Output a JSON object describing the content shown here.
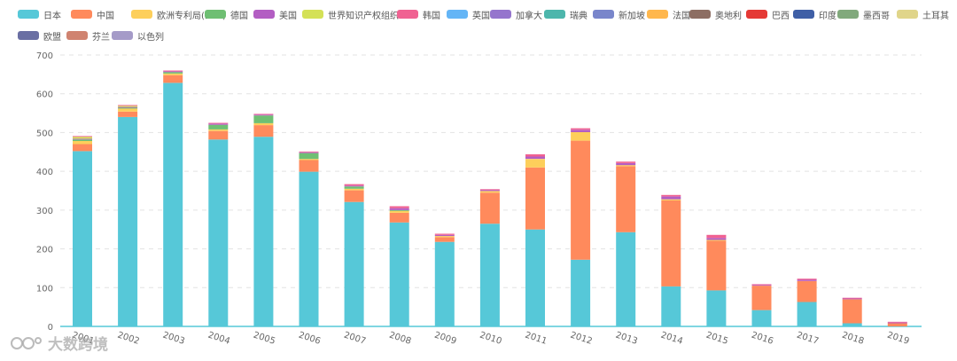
{
  "chart_data": {
    "type": "bar",
    "stacked": true,
    "categories": [
      "2001",
      "2002",
      "2003",
      "2004",
      "2005",
      "2006",
      "2007",
      "2008",
      "2009",
      "2010",
      "2011",
      "2012",
      "2013",
      "2014",
      "2015",
      "2016",
      "2017",
      "2018",
      "2019"
    ],
    "ylim": [
      0,
      700
    ],
    "yticks": [
      0,
      100,
      200,
      300,
      400,
      500,
      600,
      700
    ],
    "legend_position": "top",
    "grid": "horizontal dashed",
    "series": [
      {
        "name": "日本",
        "color": "#56c8d8",
        "values": [
          452,
          540,
          628,
          482,
          489,
          399,
          321,
          268,
          218,
          265,
          250,
          172,
          243,
          103,
          93,
          42,
          63,
          8,
          0
        ]
      },
      {
        "name": "中国",
        "color": "#ff8a5c",
        "values": [
          18,
          14,
          20,
          22,
          30,
          30,
          30,
          25,
          12,
          80,
          160,
          307,
          170,
          222,
          128,
          63,
          54,
          62,
          8
        ]
      },
      {
        "name": "欧洲专利局(EPO)",
        "color": "#fdcf5b",
        "values": [
          8,
          8,
          4,
          4,
          5,
          3,
          4,
          5,
          3,
          4,
          22,
          22,
          3,
          3,
          2,
          0,
          0,
          0,
          0
        ]
      },
      {
        "name": "德国",
        "color": "#6fbf73",
        "values": [
          4,
          2,
          4,
          12,
          20,
          15,
          6,
          2,
          0,
          0,
          0,
          0,
          0,
          0,
          0,
          0,
          0,
          0,
          0
        ]
      },
      {
        "name": "美国",
        "color": "#b35ec3",
        "values": [
          2,
          2,
          2,
          3,
          2,
          2,
          2,
          5,
          3,
          3,
          6,
          6,
          5,
          7,
          5,
          2,
          3,
          2,
          2
        ]
      },
      {
        "name": "世界知识产权组织",
        "color": "#d4e157",
        "values": [
          5,
          3,
          0,
          0,
          0,
          0,
          0,
          0,
          0,
          0,
          0,
          0,
          0,
          0,
          0,
          0,
          0,
          0,
          0
        ]
      },
      {
        "name": "韩国",
        "color": "#f06292",
        "values": [
          2,
          2,
          2,
          2,
          2,
          2,
          4,
          5,
          3,
          2,
          6,
          4,
          4,
          4,
          8,
          2,
          3,
          2,
          2
        ]
      },
      {
        "name": "英国",
        "color": "#64b5f6",
        "values": [
          0,
          0,
          0,
          0,
          0,
          0,
          0,
          0,
          0,
          0,
          0,
          0,
          0,
          0,
          0,
          0,
          0,
          0,
          0
        ]
      },
      {
        "name": "加拿大",
        "color": "#9575cd",
        "values": [
          0,
          0,
          0,
          0,
          0,
          0,
          0,
          0,
          0,
          0,
          0,
          0,
          0,
          0,
          0,
          0,
          0,
          0,
          0
        ]
      },
      {
        "name": "瑞典",
        "color": "#4db6ac",
        "values": [
          0,
          0,
          0,
          0,
          0,
          0,
          0,
          0,
          0,
          0,
          0,
          0,
          0,
          0,
          0,
          0,
          0,
          0,
          0
        ]
      },
      {
        "name": "新加坡",
        "color": "#7986cb",
        "values": [
          0,
          0,
          0,
          0,
          0,
          0,
          0,
          0,
          0,
          0,
          0,
          0,
          0,
          0,
          0,
          0,
          0,
          0,
          0
        ]
      },
      {
        "name": "法国",
        "color": "#ffb74d",
        "values": [
          0,
          0,
          0,
          0,
          0,
          0,
          0,
          0,
          0,
          0,
          0,
          0,
          0,
          0,
          0,
          0,
          0,
          0,
          0
        ]
      },
      {
        "name": "奥地利",
        "color": "#8d6e63",
        "values": [
          0,
          0,
          0,
          0,
          0,
          0,
          0,
          0,
          0,
          0,
          0,
          0,
          0,
          0,
          0,
          0,
          0,
          0,
          0
        ]
      },
      {
        "name": "巴西",
        "color": "#e53935",
        "values": [
          0,
          0,
          0,
          0,
          0,
          0,
          0,
          0,
          0,
          0,
          0,
          0,
          0,
          0,
          0,
          0,
          0,
          0,
          0
        ]
      },
      {
        "name": "印度",
        "color": "#3f5fa6",
        "values": [
          0,
          0,
          0,
          0,
          0,
          0,
          0,
          0,
          0,
          0,
          0,
          0,
          0,
          0,
          0,
          0,
          0,
          0,
          0
        ]
      },
      {
        "name": "墨西哥",
        "color": "#81a97c",
        "values": [
          0,
          0,
          0,
          0,
          0,
          0,
          0,
          0,
          0,
          0,
          0,
          0,
          0,
          0,
          0,
          0,
          0,
          0,
          0
        ]
      },
      {
        "name": "土耳其",
        "color": "#e0d58a",
        "values": [
          0,
          0,
          0,
          0,
          0,
          0,
          0,
          0,
          0,
          0,
          0,
          0,
          0,
          0,
          0,
          0,
          0,
          0,
          0
        ]
      },
      {
        "name": "欧盟",
        "color": "#6a6fa3",
        "values": [
          0,
          0,
          0,
          0,
          0,
          0,
          0,
          0,
          0,
          0,
          0,
          0,
          0,
          0,
          0,
          0,
          0,
          0,
          0
        ]
      },
      {
        "name": "芬兰",
        "color": "#d08370",
        "values": [
          0,
          0,
          0,
          0,
          0,
          0,
          0,
          0,
          0,
          0,
          0,
          0,
          0,
          0,
          0,
          0,
          0,
          0,
          0
        ]
      },
      {
        "name": "以色列",
        "color": "#a59bc8",
        "values": [
          0,
          0,
          0,
          0,
          0,
          0,
          0,
          0,
          0,
          0,
          0,
          0,
          0,
          0,
          0,
          0,
          0,
          0,
          0
        ]
      }
    ]
  },
  "watermark": {
    "text": "大数跨境"
  }
}
